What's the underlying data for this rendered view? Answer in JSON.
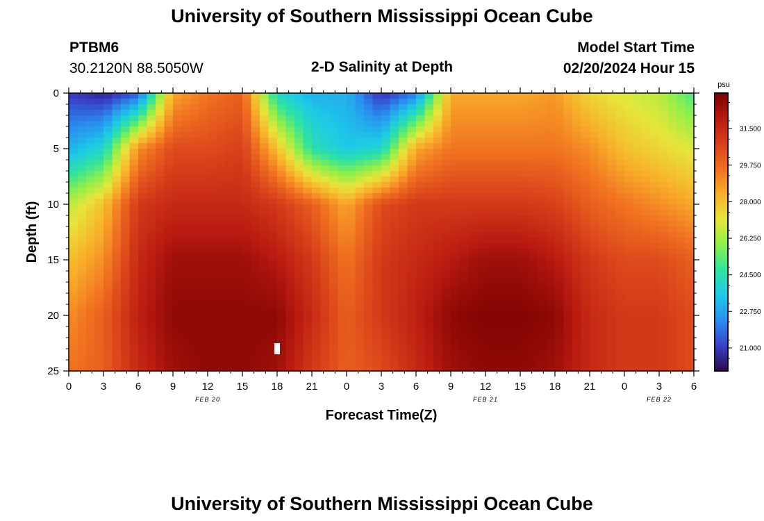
{
  "page": {
    "title": "University of Southern Mississippi Ocean Cube",
    "footer_title": "University of Southern Mississippi Ocean Cube",
    "station_id": "PTBM6",
    "station_coords": "30.2120N  88.5050W",
    "plot_title": "2-D Salinity at Depth",
    "model_start_label": "Model Start Time",
    "model_start_value": "02/20/2024 Hour 15"
  },
  "chart_data": {
    "type": "heatmap",
    "title": "2-D Salinity at Depth",
    "xlabel": "Forecast Time(Z)",
    "ylabel": "Depth (ft)",
    "x_ticks": [
      "0",
      "3",
      "6",
      "9",
      "12",
      "15",
      "18",
      "21",
      "0",
      "3",
      "6",
      "9",
      "12",
      "15",
      "18",
      "21",
      "0",
      "3",
      "6"
    ],
    "x_range_hours": [
      0,
      54
    ],
    "y_ticks": [
      "0",
      "5",
      "10",
      "15",
      "20",
      "25"
    ],
    "y_range": [
      0,
      25
    ],
    "date_labels": [
      {
        "text": "FEB 20",
        "hour": 12
      },
      {
        "text": "FEB 21",
        "hour": 36
      },
      {
        "text": "FEB 22",
        "hour": 51
      }
    ],
    "colorbar": {
      "unit": "psu",
      "range": [
        19.9,
        33.2
      ],
      "ticks": [
        "31.500",
        "29.750",
        "28.000",
        "26.250",
        "24.500",
        "22.750",
        "21.000"
      ],
      "tick_values": [
        31.5,
        29.75,
        28.0,
        26.25,
        24.5,
        22.75,
        21.0
      ],
      "colors": [
        "#2a0a4a",
        "#3a3fc8",
        "#2a8ff0",
        "#1dc9e8",
        "#2fe4a0",
        "#8ef04a",
        "#e6e63a",
        "#f8b02a",
        "#f07020",
        "#d8401a",
        "#b81a10",
        "#7a0000"
      ]
    },
    "salinity_field_psu": {
      "time_hours": [
        0,
        3,
        6,
        9,
        12,
        15,
        18,
        21,
        24,
        27,
        30,
        33,
        36,
        39,
        42,
        45,
        48,
        51,
        54
      ],
      "depth_ft": [
        0,
        5,
        10,
        15,
        20,
        25
      ],
      "values": [
        [
          21.0,
          20.5,
          21.5,
          28.5,
          29.5,
          30.0,
          24.0,
          23.0,
          23.0,
          20.8,
          22.0,
          28.5,
          28.5,
          28.5,
          28.8,
          27.5,
          27.0,
          26.5,
          25.0
        ],
        [
          23.0,
          24.0,
          29.0,
          30.5,
          30.5,
          30.8,
          28.0,
          24.5,
          23.5,
          24.0,
          28.5,
          29.5,
          29.5,
          29.5,
          29.5,
          29.0,
          28.0,
          27.5,
          27.0
        ],
        [
          26.5,
          28.0,
          31.0,
          31.5,
          31.5,
          31.5,
          31.0,
          30.0,
          28.5,
          30.5,
          31.0,
          31.0,
          31.0,
          31.0,
          30.8,
          30.0,
          29.5,
          29.0,
          28.5
        ],
        [
          28.0,
          29.0,
          31.5,
          32.5,
          32.5,
          32.5,
          32.0,
          31.0,
          29.5,
          31.0,
          31.5,
          32.0,
          32.5,
          32.5,
          32.0,
          31.0,
          30.5,
          30.5,
          30.0
        ],
        [
          29.0,
          30.0,
          31.8,
          32.8,
          32.8,
          32.8,
          32.8,
          31.5,
          30.0,
          31.0,
          31.8,
          32.8,
          33.0,
          33.0,
          32.8,
          31.5,
          31.0,
          31.0,
          30.5
        ],
        [
          29.5,
          30.0,
          31.5,
          32.5,
          32.8,
          32.8,
          32.5,
          31.0,
          30.0,
          30.5,
          31.5,
          32.5,
          32.8,
          32.8,
          32.5,
          31.5,
          31.0,
          31.0,
          30.5
        ]
      ]
    }
  }
}
